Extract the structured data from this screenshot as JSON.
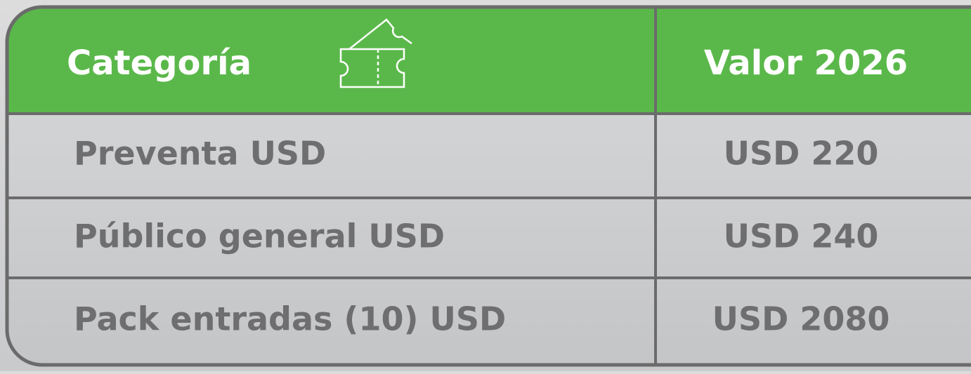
{
  "table": {
    "header": [
      "Categoría",
      "Valor 2026"
    ],
    "rows": [
      [
        "Preventa USD",
        "USD 220"
      ],
      [
        "Público general USD",
        "USD 240"
      ],
      [
        "Pack entradas (10) USD",
        "USD 2080"
      ]
    ]
  }
}
